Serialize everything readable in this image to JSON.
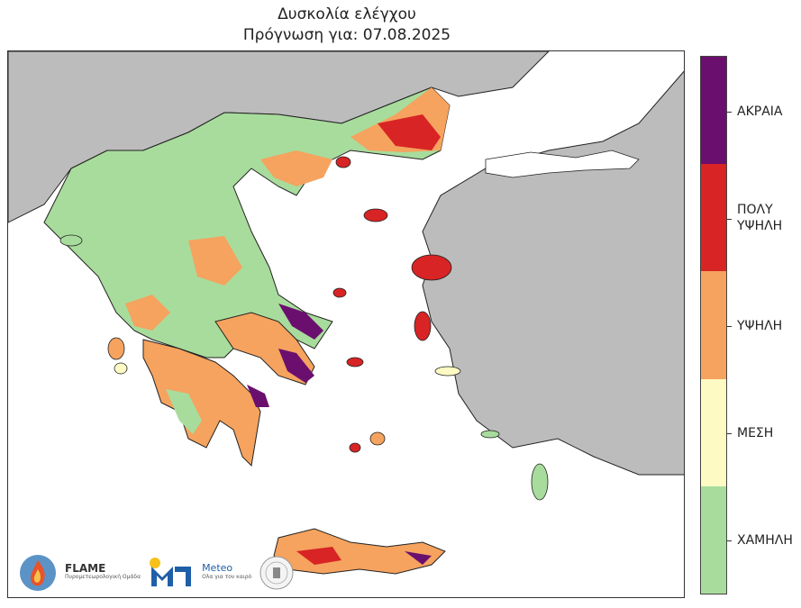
{
  "title": "Δυσκολία ελέγχου",
  "subtitle": "Πρόγνωση για: 07.08.2025",
  "legend": {
    "classes": [
      {
        "label": "ΑΚΡΑΙΑ",
        "color": "#6b0f6f"
      },
      {
        "label": "ΠΟΛΥ ΥΨΗΛΗ",
        "color": "#d82424"
      },
      {
        "label": "ΥΨΗΛΗ",
        "color": "#f5a35f"
      },
      {
        "label": "ΜΕΣΗ",
        "color": "#fdfbc3"
      },
      {
        "label": "ΧΑΜΗΛΗ",
        "color": "#a8dc9c"
      }
    ]
  },
  "map": {
    "land_outside_color": "#bcbcbc",
    "sea_color": "#ffffff"
  },
  "logos": {
    "flame_name": "FLAME",
    "flame_sub": "Πυρομετεωρολογική Ομάδα",
    "meteo_name": "Meteo",
    "meteo_sub": "Ολα για τον καιρό"
  }
}
